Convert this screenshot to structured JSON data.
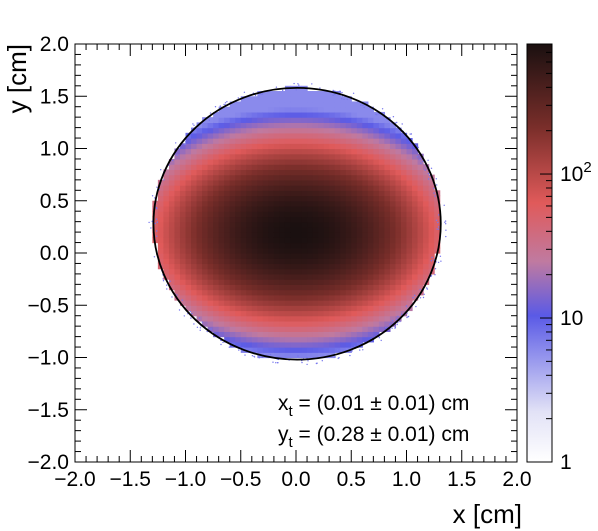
{
  "chart_data": {
    "type": "heatmap",
    "title": "",
    "xlabel": "x [cm]",
    "ylabel": "y [cm]",
    "xlim": [
      -2.0,
      2.0
    ],
    "ylim": [
      -2.0,
      2.0
    ],
    "xticks": [
      "−2.0",
      "−1.5",
      "−1.0",
      "−0.5",
      "0.0",
      "0.5",
      "1.0",
      "1.5",
      "2.0"
    ],
    "yticks": [
      "−2.0",
      "−1.5",
      "−1.0",
      "−0.5",
      "0.0",
      "0.5",
      "1.0",
      "1.5",
      "2.0"
    ],
    "grid": false,
    "colorbar": {
      "scale": "log",
      "range": [
        1,
        800
      ],
      "tick_labels": [
        {
          "value": 1,
          "text": "1"
        },
        {
          "value": 10,
          "text": "10"
        },
        {
          "value": 100,
          "text": "10",
          "sup": "2"
        }
      ],
      "colors": [
        "#ffffff",
        "#5a5ae6",
        "#e05a5a",
        "#1a1010"
      ]
    },
    "distribution": {
      "center_x": 0.0,
      "center_y": 0.2,
      "sigma_x": 0.55,
      "sigma_y": 0.38,
      "peak_value": 800
    },
    "circle": {
      "center_x": 0.01,
      "center_y": 0.28,
      "radius": 1.3
    },
    "annotations": {
      "xt": {
        "main": "x",
        "sub": "t",
        "text": " = (0.01 ± 0.01) cm"
      },
      "yt": {
        "main": "y",
        "sub": "t",
        "text": " = (0.28 ± 0.01) cm"
      }
    }
  }
}
